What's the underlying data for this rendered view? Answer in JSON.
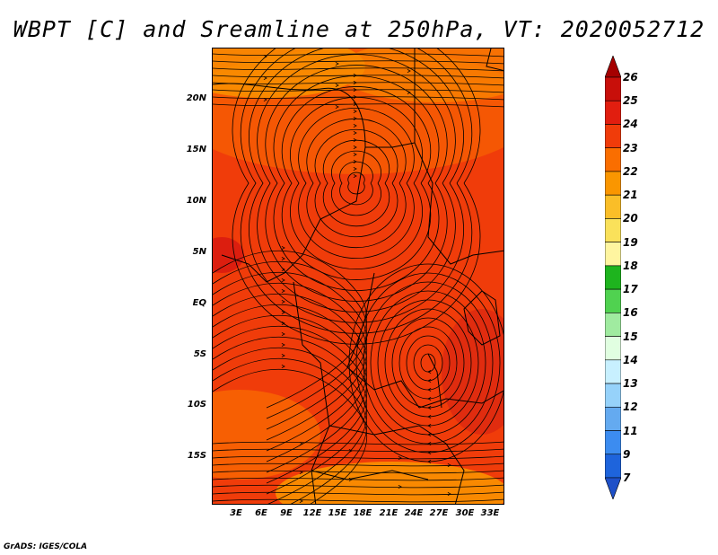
{
  "title": "WBPT [C] and Sreamline at 250hPa, VT: 2020052712",
  "credit": "GrADS: IGES/COLA",
  "lat_labels": [
    "20N",
    "15N",
    "10N",
    "5N",
    "EQ",
    "5S",
    "10S",
    "15S"
  ],
  "lon_labels": [
    "3E",
    "6E",
    "9E",
    "12E",
    "15E",
    "18E",
    "21E",
    "24E",
    "27E",
    "30E",
    "33E"
  ],
  "colorbar": {
    "labels": [
      "26",
      "25",
      "24",
      "23",
      "22",
      "21",
      "20",
      "19",
      "18",
      "17",
      "16",
      "15",
      "14",
      "13",
      "12",
      "11",
      "9",
      "7"
    ],
    "colors": [
      "#a50000",
      "#c80f0a",
      "#e11e0f",
      "#f03c0a",
      "#fa6e00",
      "#fa9600",
      "#fabe28",
      "#fae15a",
      "#fff5a0",
      "#1eb41e",
      "#50d250",
      "#a0eba0",
      "#e1ffe1",
      "#c8f0ff",
      "#96d2fa",
      "#64aaf0",
      "#3c8cf0",
      "#1e64dc",
      "#1e50c8"
    ],
    "top_color": "#a50000",
    "bottom_color": "#1e50c8"
  },
  "field_colors": {
    "base": "#f03c0a",
    "warm_core": "#e11e0f",
    "cool_patch": "#fa6e00",
    "cooler_patch": "#fa9600"
  }
}
